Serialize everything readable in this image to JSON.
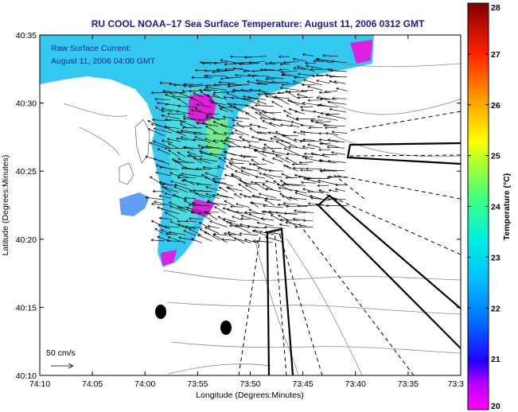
{
  "title": "RU COOL  NOAA–17  Sea Surface Temperature:  August 11, 2006 0312 GMT",
  "annotation": {
    "line1": "Raw Surface Current:",
    "line2": "August 11, 2006 04:00 GMT"
  },
  "scale_label": "50 cm/s",
  "x_axis": {
    "label": "Longitude (Degrees:Minutes)",
    "ticks": [
      "74:10",
      "74:05",
      "74:00",
      "73:55",
      "73:50",
      "73:45",
      "73:40",
      "73:35",
      "73:3"
    ]
  },
  "y_axis": {
    "label": "Latitude (Degrees:Minutes)",
    "ticks": [
      "40:35",
      "40:30",
      "40:25",
      "40:20",
      "40:15",
      "40:10"
    ]
  },
  "colorbar": {
    "label": "Temperature (°C)",
    "ticks": [
      "28",
      "27",
      "26",
      "25",
      "24",
      "23",
      "22",
      "21",
      "20"
    ],
    "min": 20,
    "max": 28,
    "colors": [
      "#ff00ff",
      "#8a00ff",
      "#0000ff",
      "#0090ff",
      "#00e0ff",
      "#40ffc0",
      "#a0ff40",
      "#ffff00",
      "#ffa000",
      "#ff3000",
      "#cc0000",
      "#800000"
    ]
  },
  "map_colors": {
    "sst_fill": "#33c8f0",
    "sst_warm": "#60f0c0",
    "sst_cold": "#e020e0",
    "land": "#ffffff",
    "contour": "#888888",
    "boundary": "#000000"
  }
}
